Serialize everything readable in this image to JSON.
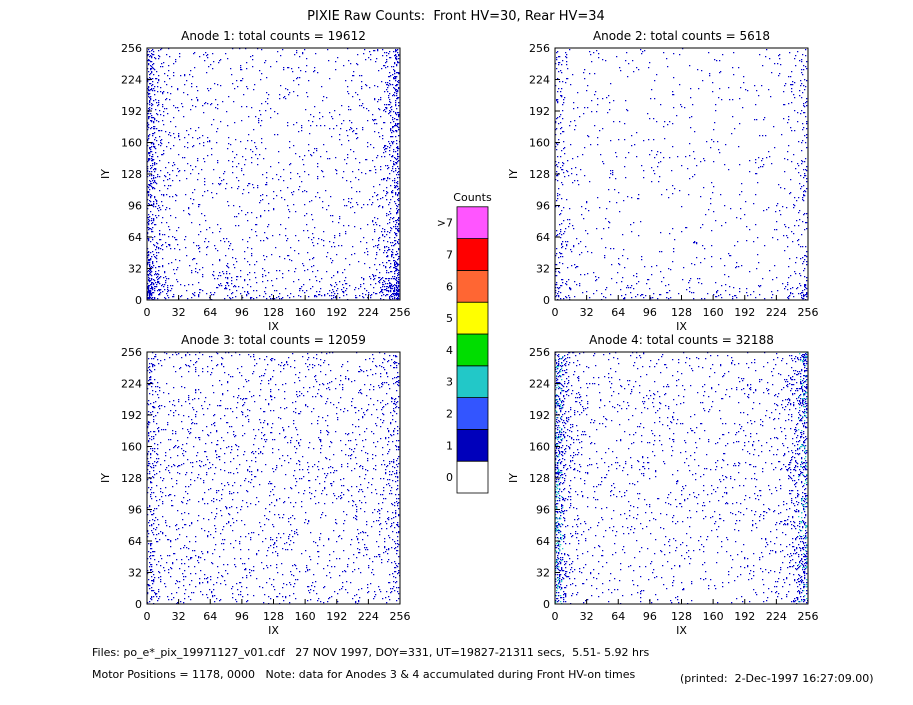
{
  "chart_data": {
    "type": "heatmap",
    "title": "PIXIE Raw Counts:  Front HV=30, Rear HV=34",
    "xlabel": "IX",
    "ylabel": "IY",
    "xlim": [
      0,
      256
    ],
    "ylim": [
      0,
      256
    ],
    "xticks": [
      0,
      32,
      64,
      96,
      128,
      160,
      192,
      224,
      256
    ],
    "yticks": [
      0,
      32,
      64,
      96,
      128,
      160,
      192,
      224,
      256
    ],
    "panels": [
      {
        "title": "Anode 1: total counts = 19612"
      },
      {
        "title": "Anode 2: total counts = 5618"
      },
      {
        "title": "Anode 3: total counts = 12059"
      },
      {
        "title": "Anode 4: total counts = 32188"
      }
    ],
    "colorbar": {
      "title": "Counts",
      "labels": [
        "0",
        "1",
        "2",
        "3",
        "4",
        "5",
        "6",
        "7",
        ">7"
      ],
      "colors": [
        "#ffffff",
        "#0000bb",
        "#3355ff",
        "#22c8c8",
        "#00dd00",
        "#ffff00",
        "#ff6633",
        "#ff0000",
        "#ff55ff"
      ]
    }
  },
  "footer": {
    "files": "Files: po_e*_pix_19971127_v01.cdf   27 NOV 1997, DOY=331, UT=19827-21311 secs,  5.51- 5.92 hrs",
    "motor": "Motor Positions = 1178, 0000   Note: data for Anodes 3 & 4 accumulated during Front HV-on times",
    "printed": "(printed:  2-Dec-1997 16:27:09.00)"
  }
}
